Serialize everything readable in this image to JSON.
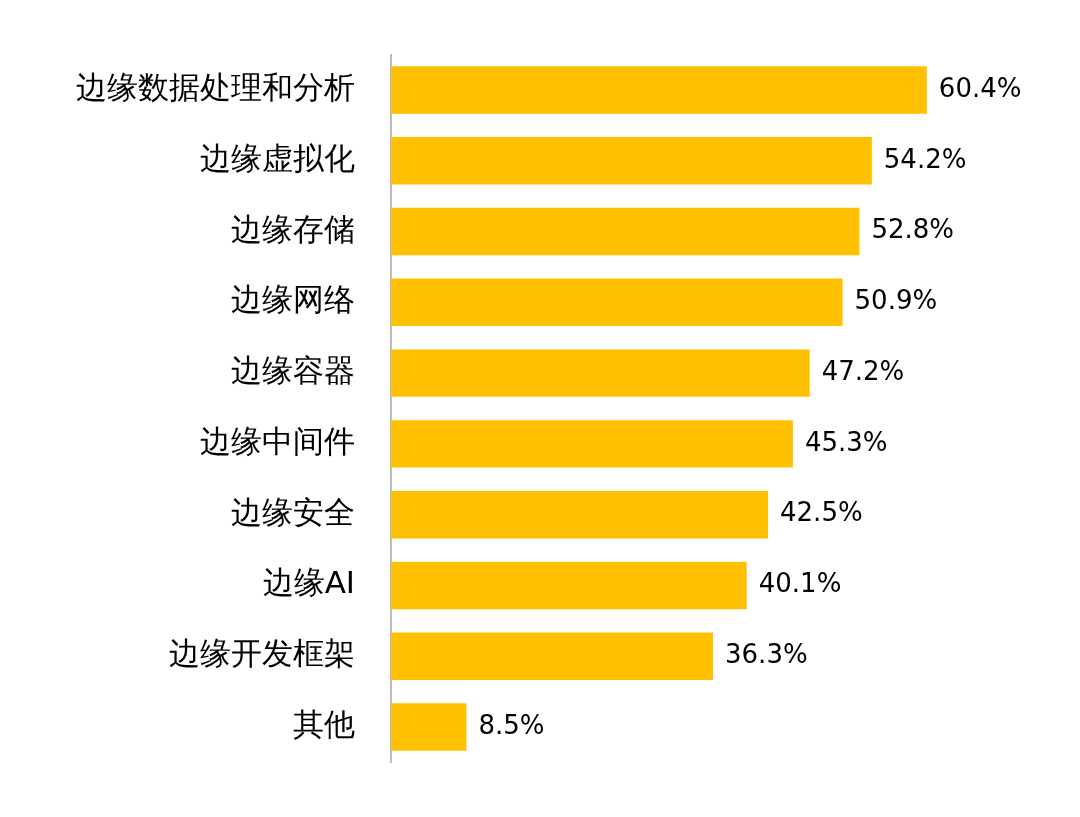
{
  "chart_data": {
    "type": "bar",
    "orientation": "horizontal",
    "categories": [
      "边缘数据处理和分析",
      "边缘虚拟化",
      "边缘存储",
      "边缘网络",
      "边缘容器",
      "边缘中间件",
      "边缘安全",
      "边缘AI",
      "边缘开发框架",
      "其他"
    ],
    "values": [
      60.4,
      54.2,
      52.8,
      50.9,
      47.2,
      45.3,
      42.5,
      40.1,
      36.3,
      8.5
    ],
    "value_labels": [
      "60.4%",
      "54.2%",
      "52.8%",
      "50.9%",
      "47.2%",
      "45.3%",
      "42.5%",
      "40.1%",
      "36.3%",
      "8.5%"
    ],
    "color": "#ffc000",
    "grid": false,
    "legend": false,
    "tick_labels": "y"
  }
}
